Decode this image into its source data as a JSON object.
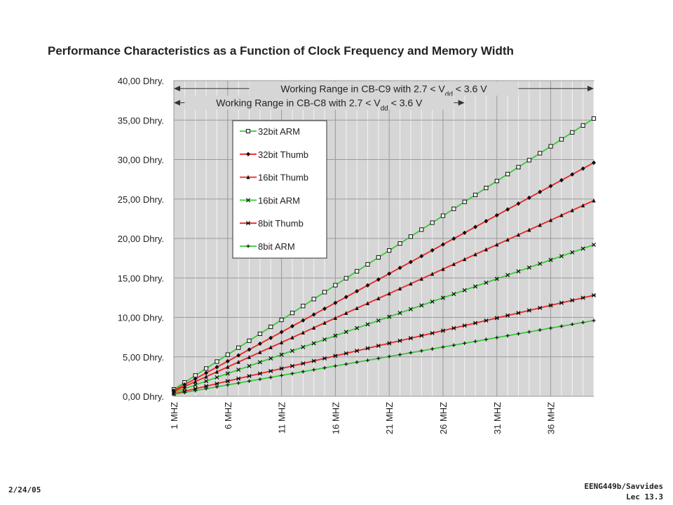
{
  "footer": {
    "date": "2/24/05",
    "course": "EENG449b/Savvides",
    "lecture": "Lec 13.3"
  },
  "chart_data": {
    "type": "line",
    "title": "Performance Characteristics as a Function of Clock Frequency and Memory Width",
    "x": {
      "min": 1,
      "max": 40,
      "step": 1,
      "tick_values": [
        1,
        6,
        11,
        16,
        21,
        26,
        31,
        36
      ],
      "tick_labels": [
        "1 MHZ",
        "6 MHZ",
        "11 MHZ",
        "16 MHZ",
        "21 MHZ",
        "26 MHZ",
        "31 MHZ",
        "36 MHZ"
      ]
    },
    "y": {
      "min": 0,
      "max": 40,
      "tick_values": [
        0,
        5,
        10,
        15,
        20,
        25,
        30,
        35,
        40
      ],
      "tick_labels": [
        "0,00 Dhry.",
        "5,00 Dhry.",
        "10,00 Dhry.",
        "15,00 Dhry.",
        "20,00 Dhry.",
        "25,00 Dhry.",
        "30,00 Dhry.",
        "35,00 Dhry.",
        "40,00 Dhry."
      ]
    },
    "grid": true,
    "ranges": [
      {
        "label_pre": "Working Range in CB-C9 with 2.7 < V",
        "label_sub": "dd",
        "label_post": " < 3.6 V",
        "x_from": 1,
        "x_to": 40,
        "y": 39.0
      },
      {
        "label_pre": "Working Range in CB-C8 with 2.7 < V",
        "label_sub": "dd",
        "label_post": " < 3.6 V",
        "x_from": 1,
        "x_to": 28,
        "y": 37.2
      }
    ],
    "legend_position": "top-left",
    "series": [
      {
        "name": "32bit ARM",
        "color": "#33cc33",
        "marker": "square-open",
        "y_at_min": 0.88,
        "y_at_max": 35.2
      },
      {
        "name": "32bit Thumb",
        "color": "#ee2222",
        "marker": "diamond",
        "y_at_min": 0.74,
        "y_at_max": 29.6
      },
      {
        "name": "16bit Thumb",
        "color": "#ee2222",
        "marker": "triangle",
        "y_at_min": 0.62,
        "y_at_max": 24.8
      },
      {
        "name": "16bit ARM",
        "color": "#33cc33",
        "marker": "x",
        "y_at_min": 0.48,
        "y_at_max": 19.2
      },
      {
        "name": "8bit Thumb",
        "color": "#ee2222",
        "marker": "asterisk",
        "y_at_min": 0.32,
        "y_at_max": 12.8
      },
      {
        "name": "8bit ARM",
        "color": "#33cc33",
        "marker": "plus",
        "y_at_min": 0.24,
        "y_at_max": 9.6
      }
    ]
  }
}
